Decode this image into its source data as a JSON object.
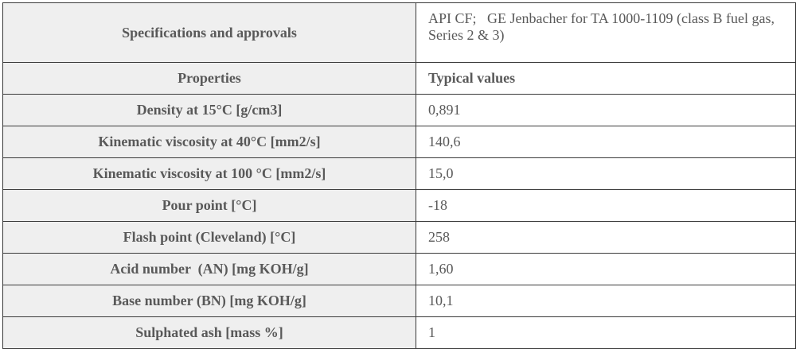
{
  "table": {
    "top": [
      "Specifications and approvals",
      "API CF;   GE Jenbacher for TA 1000-1109 (class B fuel gas, Series 2 & 3)"
    ],
    "header": [
      "Properties",
      "Typical values"
    ],
    "rows": [
      [
        "Density at 15°C [g/cm3]",
        "0,891"
      ],
      [
        "Kinematic viscosity at 40°C [mm2/s]",
        "140,6"
      ],
      [
        "Kinematic viscosity at 100 °C [mm2/s]",
        "15,0"
      ],
      [
        "Pour point [°C]",
        "-18"
      ],
      [
        "Flash point (Cleveland) [°C]",
        "258"
      ],
      [
        "Acid number  (AN) [mg KOH/g]",
        "1,60"
      ],
      [
        "Base number (BN) [mg KOH/g]",
        "10,1"
      ],
      [
        "Sulphated ash [mass %]",
        "1"
      ]
    ]
  }
}
